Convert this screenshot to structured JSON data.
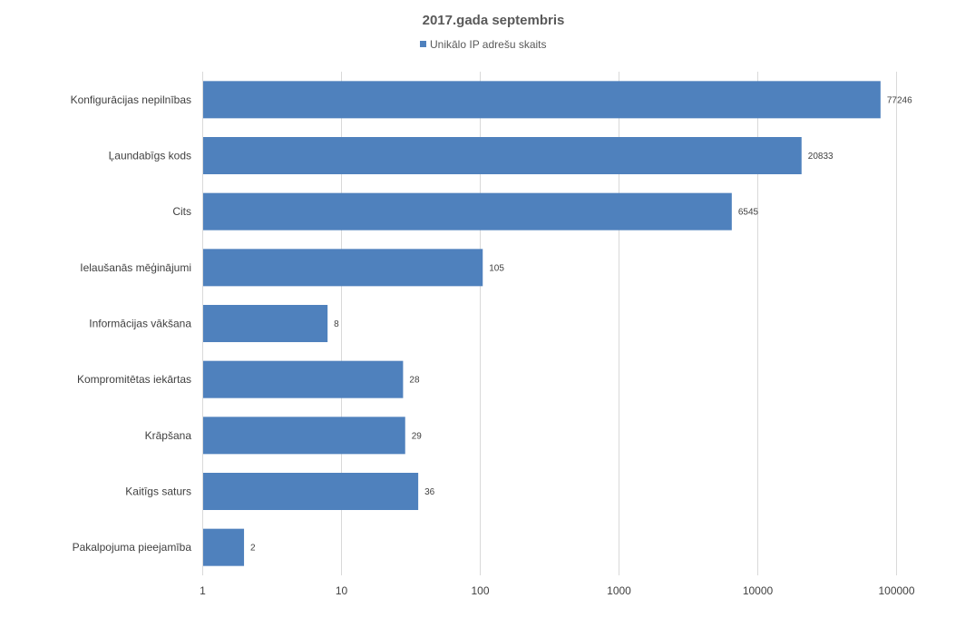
{
  "chart_data": {
    "type": "bar",
    "orientation": "horizontal",
    "title": "2017.gada septembris",
    "xscale": "log",
    "xlim": [
      1,
      100000
    ],
    "xticks": [
      "1",
      "10",
      "100",
      "1000",
      "10000",
      "100000"
    ],
    "xtick_values": [
      1,
      10,
      100,
      1000,
      10000,
      100000
    ],
    "grid": "vertical",
    "legend_position": "top",
    "categories": [
      "Konfigurācijas nepilnības",
      "Ļaundabīgs kods",
      "Cits",
      "Ielaušanās mēģinājumi",
      "Informācijas vākšana",
      "Kompromitētas iekārtas",
      "Krāpšana",
      "Kaitīgs saturs",
      "Pakalpojuma pieejamība"
    ],
    "series": [
      {
        "name": "Unikālo IP adrešu skaits",
        "color": "#4f81bd",
        "values": [
          77246,
          20833,
          6545,
          105,
          8,
          28,
          29,
          36,
          2
        ],
        "data_labels": [
          "77246",
          "20833",
          "6545",
          "105",
          "8",
          "28",
          "29",
          "36",
          "2"
        ]
      }
    ]
  }
}
